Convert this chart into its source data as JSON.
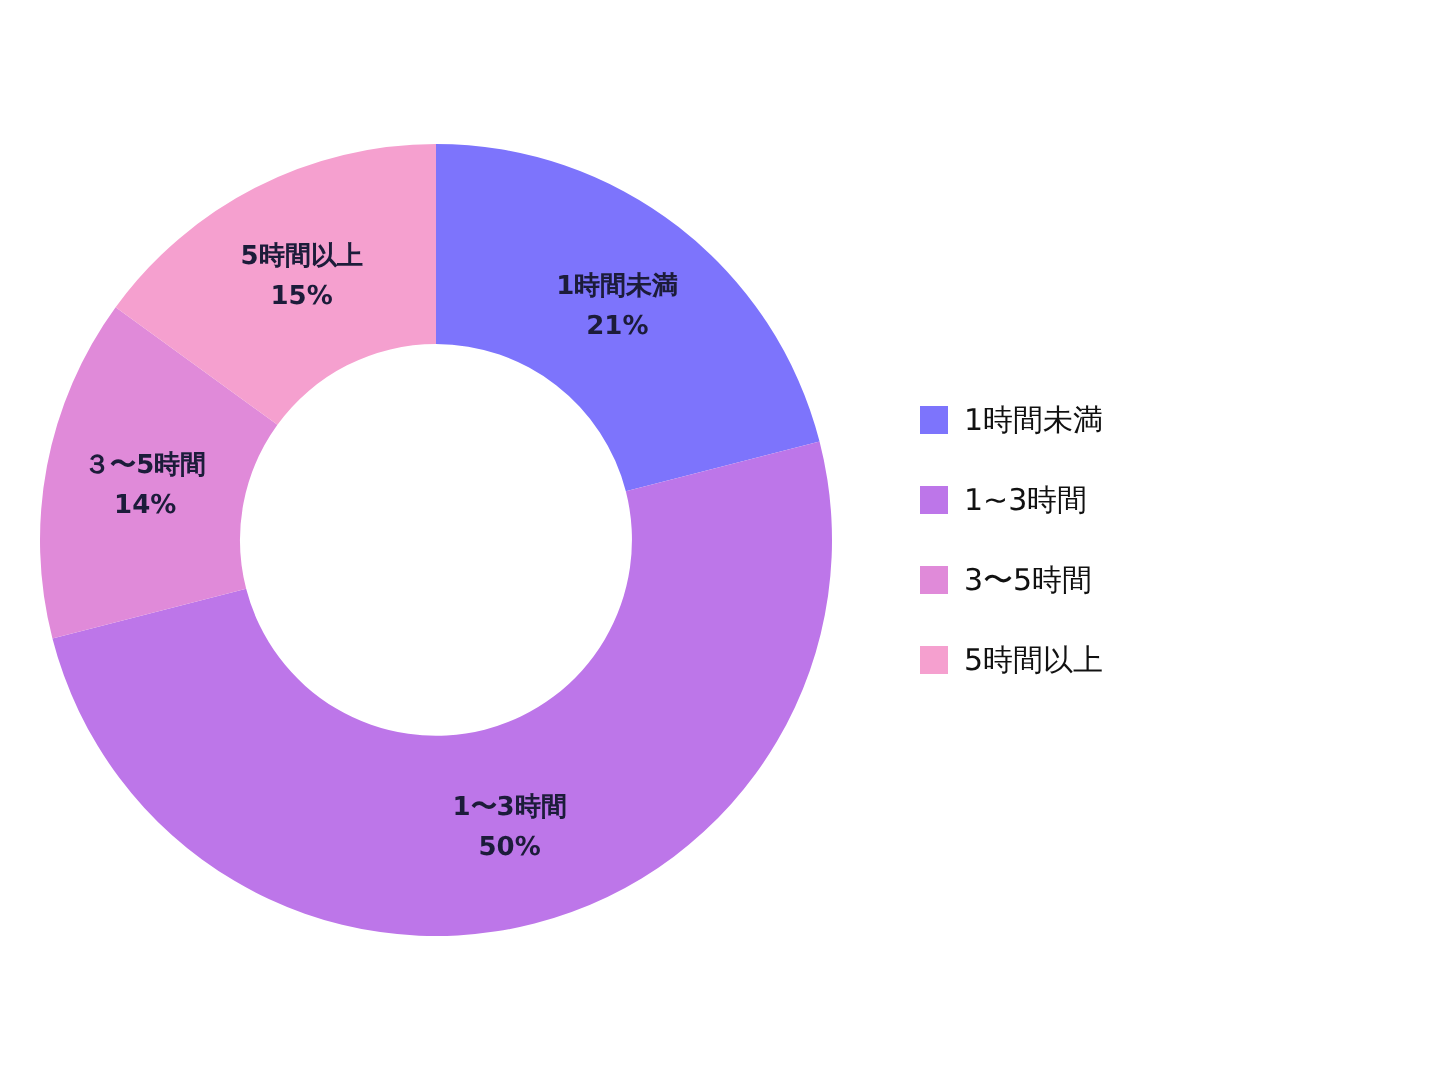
{
  "chart_data": {
    "type": "donut",
    "categories": [
      "1時間未満",
      "1~3時間",
      "3〜5時間",
      "5時間以上"
    ],
    "values": [
      21,
      50,
      14,
      15
    ],
    "colors": [
      "#7d74fc",
      "#bd76e9",
      "#e08ad9",
      "#f5a0cf"
    ],
    "value_labels": [
      "1時間未満\n21%",
      "1〜3時間\n50%",
      "３〜5時間\n14%",
      "5時間以上\n15%"
    ],
    "legend": "right"
  }
}
